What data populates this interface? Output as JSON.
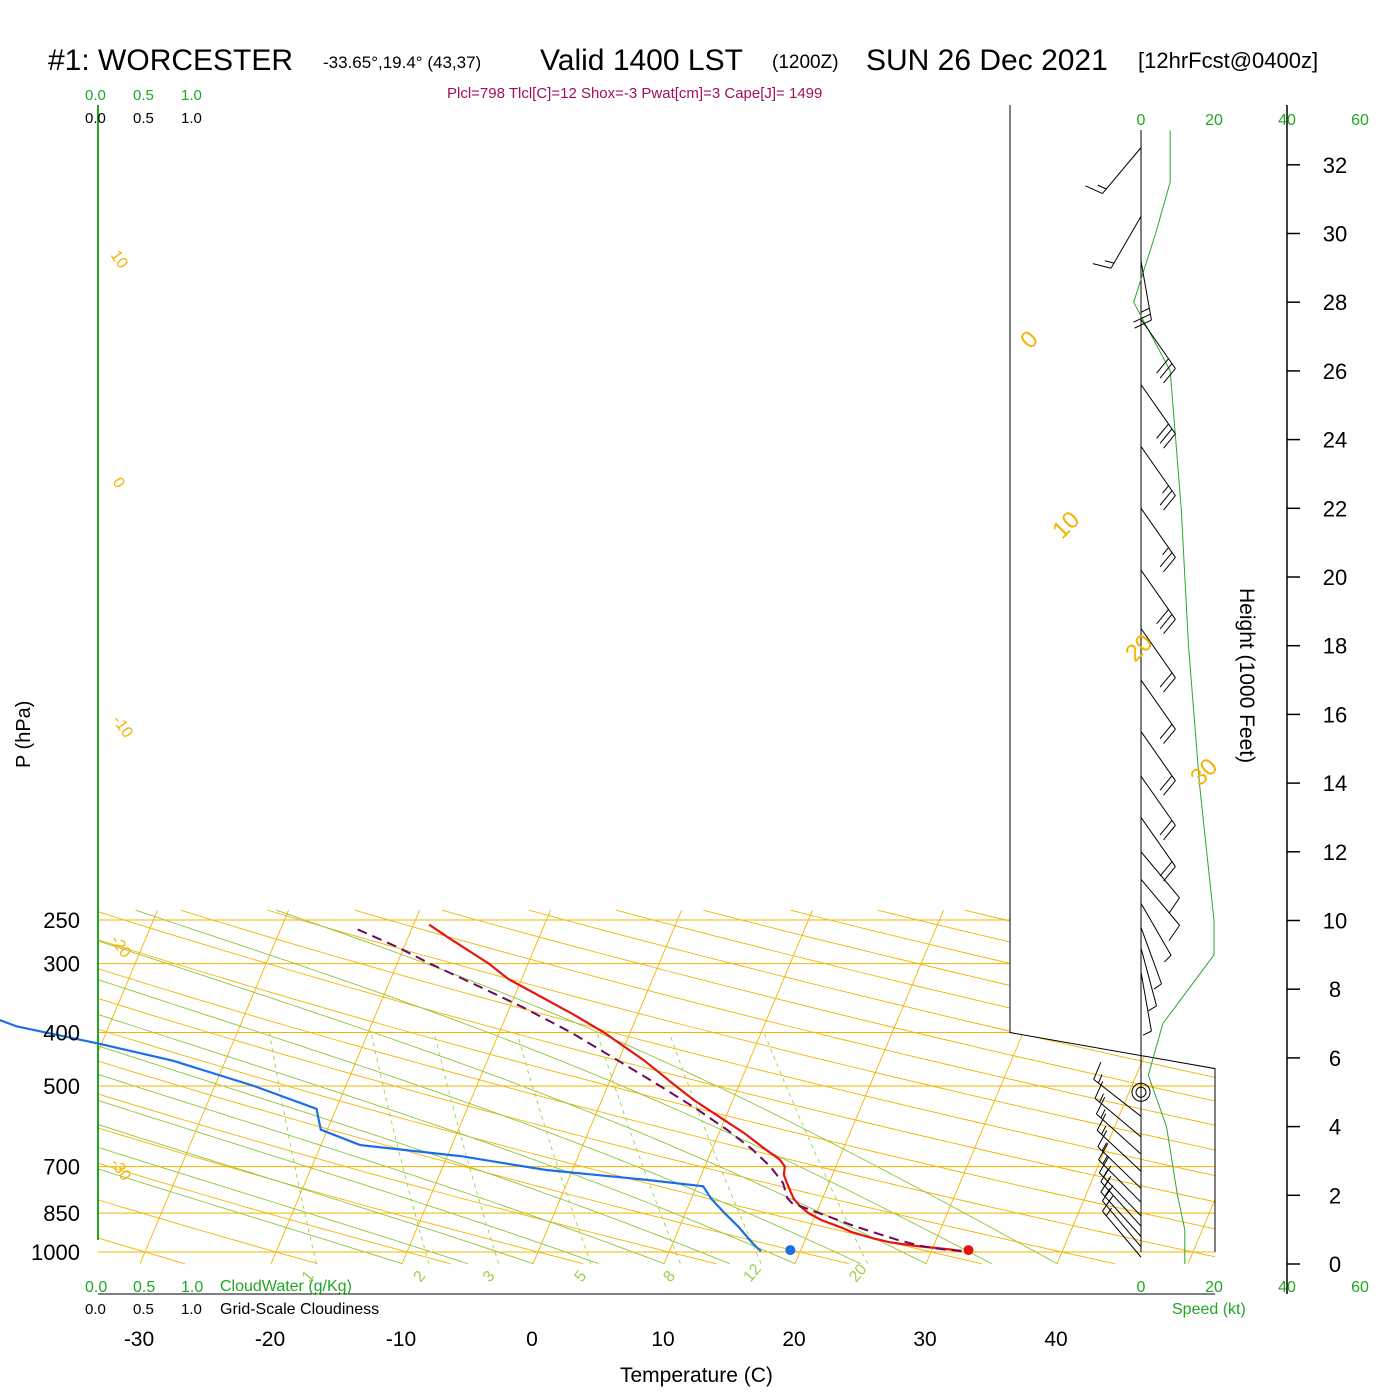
{
  "header": {
    "station": "#1: WORCESTER",
    "coords": "-33.65°,19.4° (43,37)",
    "valid": "Valid 1400 LST",
    "zulu": "(1200Z)",
    "date": "SUN 26 Dec 2021",
    "forecast": "[12hrFcst@0400z]",
    "params": "Plcl=798 Tlcl[C]=12 Shox=-3 Pwat[cm]=3 Cape[J]= 1499"
  },
  "colors": {
    "temperature": "#e8150f",
    "dewpoint": "#1a6fe8",
    "parcel": "#6b0a5f",
    "isobar": "#f2b400",
    "dry_adiabat": "#f2b400",
    "moist_adiabat": "#8fc43a",
    "mixing_ratio": "#9fd04a",
    "wind_speed": "#2aa82a",
    "accent_green": "#22a622",
    "params_text": "#a0105a"
  },
  "chart_data": {
    "type": "line",
    "xlabel": "Temperature (C)",
    "ylabel": "P (hPa)",
    "right_axis_label": "Height (1000 Feet)",
    "x_ticks": [
      "-30",
      "-20",
      "-10",
      "0",
      "10",
      "20",
      "30",
      "40"
    ],
    "pressure_ticks": [
      "250",
      "300",
      "400",
      "500",
      "700",
      "850",
      "1000"
    ],
    "height_ticks": [
      "0",
      "2",
      "4",
      "6",
      "8",
      "10",
      "12",
      "14",
      "16",
      "18",
      "20",
      "22",
      "24",
      "26",
      "28",
      "30",
      "32"
    ],
    "top_scale_green": [
      "0.0",
      "0.5",
      "1.0"
    ],
    "top_scale_black": [
      "0.0",
      "0.5",
      "1.0"
    ],
    "bottom_scale_green": [
      "0.0",
      "0.5",
      "1.0"
    ],
    "bottom_scale_black": [
      "0.0",
      "0.5",
      "1.0"
    ],
    "cloudwater_label": "CloudWater (g/Kg)",
    "cloudiness_label": "Grid-Scale Cloudiness",
    "speed_ticks": [
      "0",
      "20",
      "40",
      "60"
    ],
    "speed_label": "Speed (kt)",
    "dry_adiabat_labels": [
      "10",
      "0",
      "-10",
      "-20",
      "-30"
    ],
    "isotherm_labels": [
      "0",
      "10",
      "20",
      "30"
    ],
    "mixing_ratio_labels": [
      "1",
      "2",
      "3",
      "5",
      "8",
      "12",
      "20"
    ],
    "series": [
      {
        "id": "temperature",
        "points": [
          [
            998,
            32.3
          ],
          [
            990,
            31.5
          ],
          [
            975,
            28.6
          ],
          [
            960,
            26.5
          ],
          [
            945,
            25.2
          ],
          [
            920,
            23.3
          ],
          [
            900,
            22.2
          ],
          [
            875,
            20.6
          ],
          [
            850,
            19.4
          ],
          [
            825,
            18.5
          ],
          [
            800,
            17.8
          ],
          [
            775,
            17.3
          ],
          [
            750,
            16.8
          ],
          [
            725,
            16.3
          ],
          [
            700,
            16.1
          ],
          [
            680,
            15.5
          ],
          [
            650,
            14.0
          ],
          [
            610,
            12.0
          ],
          [
            570,
            9.6
          ],
          [
            530,
            7.0
          ],
          [
            500,
            5.2
          ],
          [
            450,
            2.0
          ],
          [
            400,
            -2.0
          ],
          [
            370,
            -5.0
          ],
          [
            340,
            -8.5
          ],
          [
            320,
            -11.0
          ],
          [
            300,
            -13.0
          ],
          [
            270,
            -16.8
          ],
          [
            255,
            -18.8
          ]
        ]
      },
      {
        "id": "dewpoint",
        "points": [
          [
            997,
            17.0
          ],
          [
            990,
            16.8
          ],
          [
            960,
            16.0
          ],
          [
            900,
            14.5
          ],
          [
            850,
            13.0
          ],
          [
            800,
            11.5
          ],
          [
            760,
            10.5
          ],
          [
            740,
            6.0
          ],
          [
            710,
            -2.0
          ],
          [
            690,
            -5.5
          ],
          [
            670,
            -9.0
          ],
          [
            640,
            -17.0
          ],
          [
            600,
            -20.5
          ],
          [
            550,
            -21.5
          ],
          [
            500,
            -27.0
          ],
          [
            450,
            -34.0
          ],
          [
            420,
            -40.0
          ],
          [
            390,
            -47.0
          ],
          [
            370,
            -50.0
          ],
          [
            340,
            -54.0
          ],
          [
            320,
            -57.5
          ],
          [
            300,
            -57.0
          ],
          [
            275,
            -56.0
          ],
          [
            258,
            -56.0
          ]
        ]
      },
      {
        "id": "parcel",
        "points": [
          [
            995,
            32.3
          ],
          [
            990,
            31.0
          ],
          [
            975,
            29.0
          ],
          [
            950,
            27.0
          ],
          [
            900,
            23.5
          ],
          [
            850,
            20.2
          ],
          [
            815,
            17.8
          ],
          [
            798,
            17.3
          ],
          [
            750,
            16.5
          ],
          [
            700,
            15.0
          ],
          [
            650,
            13.0
          ],
          [
            600,
            10.5
          ],
          [
            550,
            7.5
          ],
          [
            500,
            4.0
          ],
          [
            450,
            0.0
          ],
          [
            400,
            -4.5
          ],
          [
            360,
            -9.0
          ],
          [
            330,
            -13.0
          ],
          [
            300,
            -17.5
          ],
          [
            280,
            -20.5
          ],
          [
            258,
            -24.5
          ]
        ]
      }
    ],
    "surface_temperature_marker": {
      "pressure": 992,
      "temperature": 32.8
    },
    "surface_dewpoint_marker": {
      "pressure": 992,
      "temperature": 19.2
    },
    "wind_speed_profile": [
      [
        0,
        12
      ],
      [
        1,
        12
      ],
      [
        2,
        10
      ],
      [
        4,
        7
      ],
      [
        5.5,
        2
      ],
      [
        7,
        6
      ],
      [
        8,
        13
      ],
      [
        9,
        20
      ],
      [
        10,
        20
      ],
      [
        14,
        16
      ],
      [
        18,
        13
      ],
      [
        22,
        11
      ],
      [
        26,
        8
      ],
      [
        28,
        -2
      ],
      [
        30,
        4
      ],
      [
        31.5,
        8
      ],
      [
        33,
        8
      ]
    ],
    "wind_barbs": [
      {
        "height": 0.2,
        "speed": 15,
        "dir": 320
      },
      {
        "height": 0.5,
        "speed": 15,
        "dir": 320
      },
      {
        "height": 0.8,
        "speed": 15,
        "dir": 318
      },
      {
        "height": 1.1,
        "speed": 15,
        "dir": 318
      },
      {
        "height": 1.4,
        "speed": 15,
        "dir": 316
      },
      {
        "height": 1.8,
        "speed": 15,
        "dir": 315
      },
      {
        "height": 2.2,
        "speed": 15,
        "dir": 314
      },
      {
        "height": 2.7,
        "speed": 15,
        "dir": 313
      },
      {
        "height": 3.2,
        "speed": 15,
        "dir": 312
      },
      {
        "height": 3.7,
        "speed": 15,
        "dir": 310
      },
      {
        "height": 4.3,
        "speed": 15,
        "dir": 308
      },
      {
        "height": 8.5,
        "speed": 5,
        "dir": 170
      },
      {
        "height": 9.2,
        "speed": 5,
        "dir": 165
      },
      {
        "height": 9.8,
        "speed": 5,
        "dir": 160
      },
      {
        "height": 10.5,
        "speed": 5,
        "dir": 150
      },
      {
        "height": 11.2,
        "speed": 10,
        "dir": 140
      },
      {
        "height": 12.0,
        "speed": 10,
        "dir": 140
      },
      {
        "height": 13.0,
        "speed": 20,
        "dir": 145
      },
      {
        "height": 14.2,
        "speed": 20,
        "dir": 145
      },
      {
        "height": 15.5,
        "speed": 20,
        "dir": 145
      },
      {
        "height": 17.0,
        "speed": 20,
        "dir": 145
      },
      {
        "height": 18.5,
        "speed": 20,
        "dir": 145
      },
      {
        "height": 20.2,
        "speed": 30,
        "dir": 145
      },
      {
        "height": 22.0,
        "speed": 25,
        "dir": 145
      },
      {
        "height": 23.8,
        "speed": 25,
        "dir": 145
      },
      {
        "height": 25.6,
        "speed": 30,
        "dir": 145
      },
      {
        "height": 27.5,
        "speed": 30,
        "dir": 145
      },
      {
        "height": 29.2,
        "speed": 25,
        "dir": 170
      },
      {
        "height": 30.5,
        "speed": 15,
        "dir": 210
      },
      {
        "height": 32.5,
        "speed": 15,
        "dir": 220
      }
    ]
  }
}
